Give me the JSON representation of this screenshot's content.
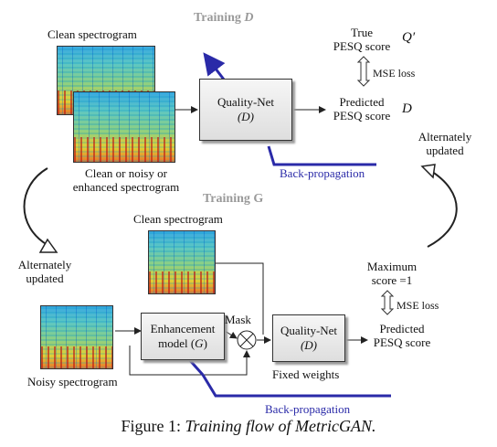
{
  "caption": {
    "prefix": "Figure 1: ",
    "title": "Training flow of MetricGAN."
  },
  "training_d": {
    "label_prefix": "Training ",
    "label_var": "D",
    "clean_spectrogram": "Clean spectrogram",
    "noisy_spectrogram_l1": "Clean or noisy or",
    "noisy_spectrogram_l2": "enhanced spectrogram",
    "quality_net": {
      "name": "Quality-Net",
      "var": "(D)"
    },
    "true_score_l1": "True",
    "true_score_l2": "PESQ score",
    "true_score_var": "Q′",
    "mse_loss": "MSE loss",
    "predicted_l1": "Predicted",
    "predicted_l2": "PESQ score",
    "predicted_var": "D",
    "backprop": "Back-propagation"
  },
  "training_g": {
    "label": "Training G",
    "clean_spectrogram": "Clean spectrogram",
    "noisy_spectrogram": "Noisy spectrogram",
    "enhancement": {
      "name": "Enhancement",
      "var_prefix": "model (",
      "var": "G",
      "var_suffix": ")"
    },
    "mask": "Mask",
    "multiply": "⊗",
    "quality_net": {
      "name": "Quality-Net",
      "var": "(D)"
    },
    "fixed_weights": "Fixed weights",
    "max_score_l1": "Maximum",
    "max_score_l2": "score =1",
    "mse_loss": "MSE loss",
    "predicted_l1": "Predicted",
    "predicted_l2": "PESQ score",
    "backprop": "Back-propagation"
  },
  "alternately_left": {
    "l1": "Alternately",
    "l2": "updated"
  },
  "alternately_right": {
    "l1": "Alternately",
    "l2": "updated"
  },
  "colors": {
    "backprop": "#2a2aa8",
    "label_gray": "#9a9a9a"
  }
}
